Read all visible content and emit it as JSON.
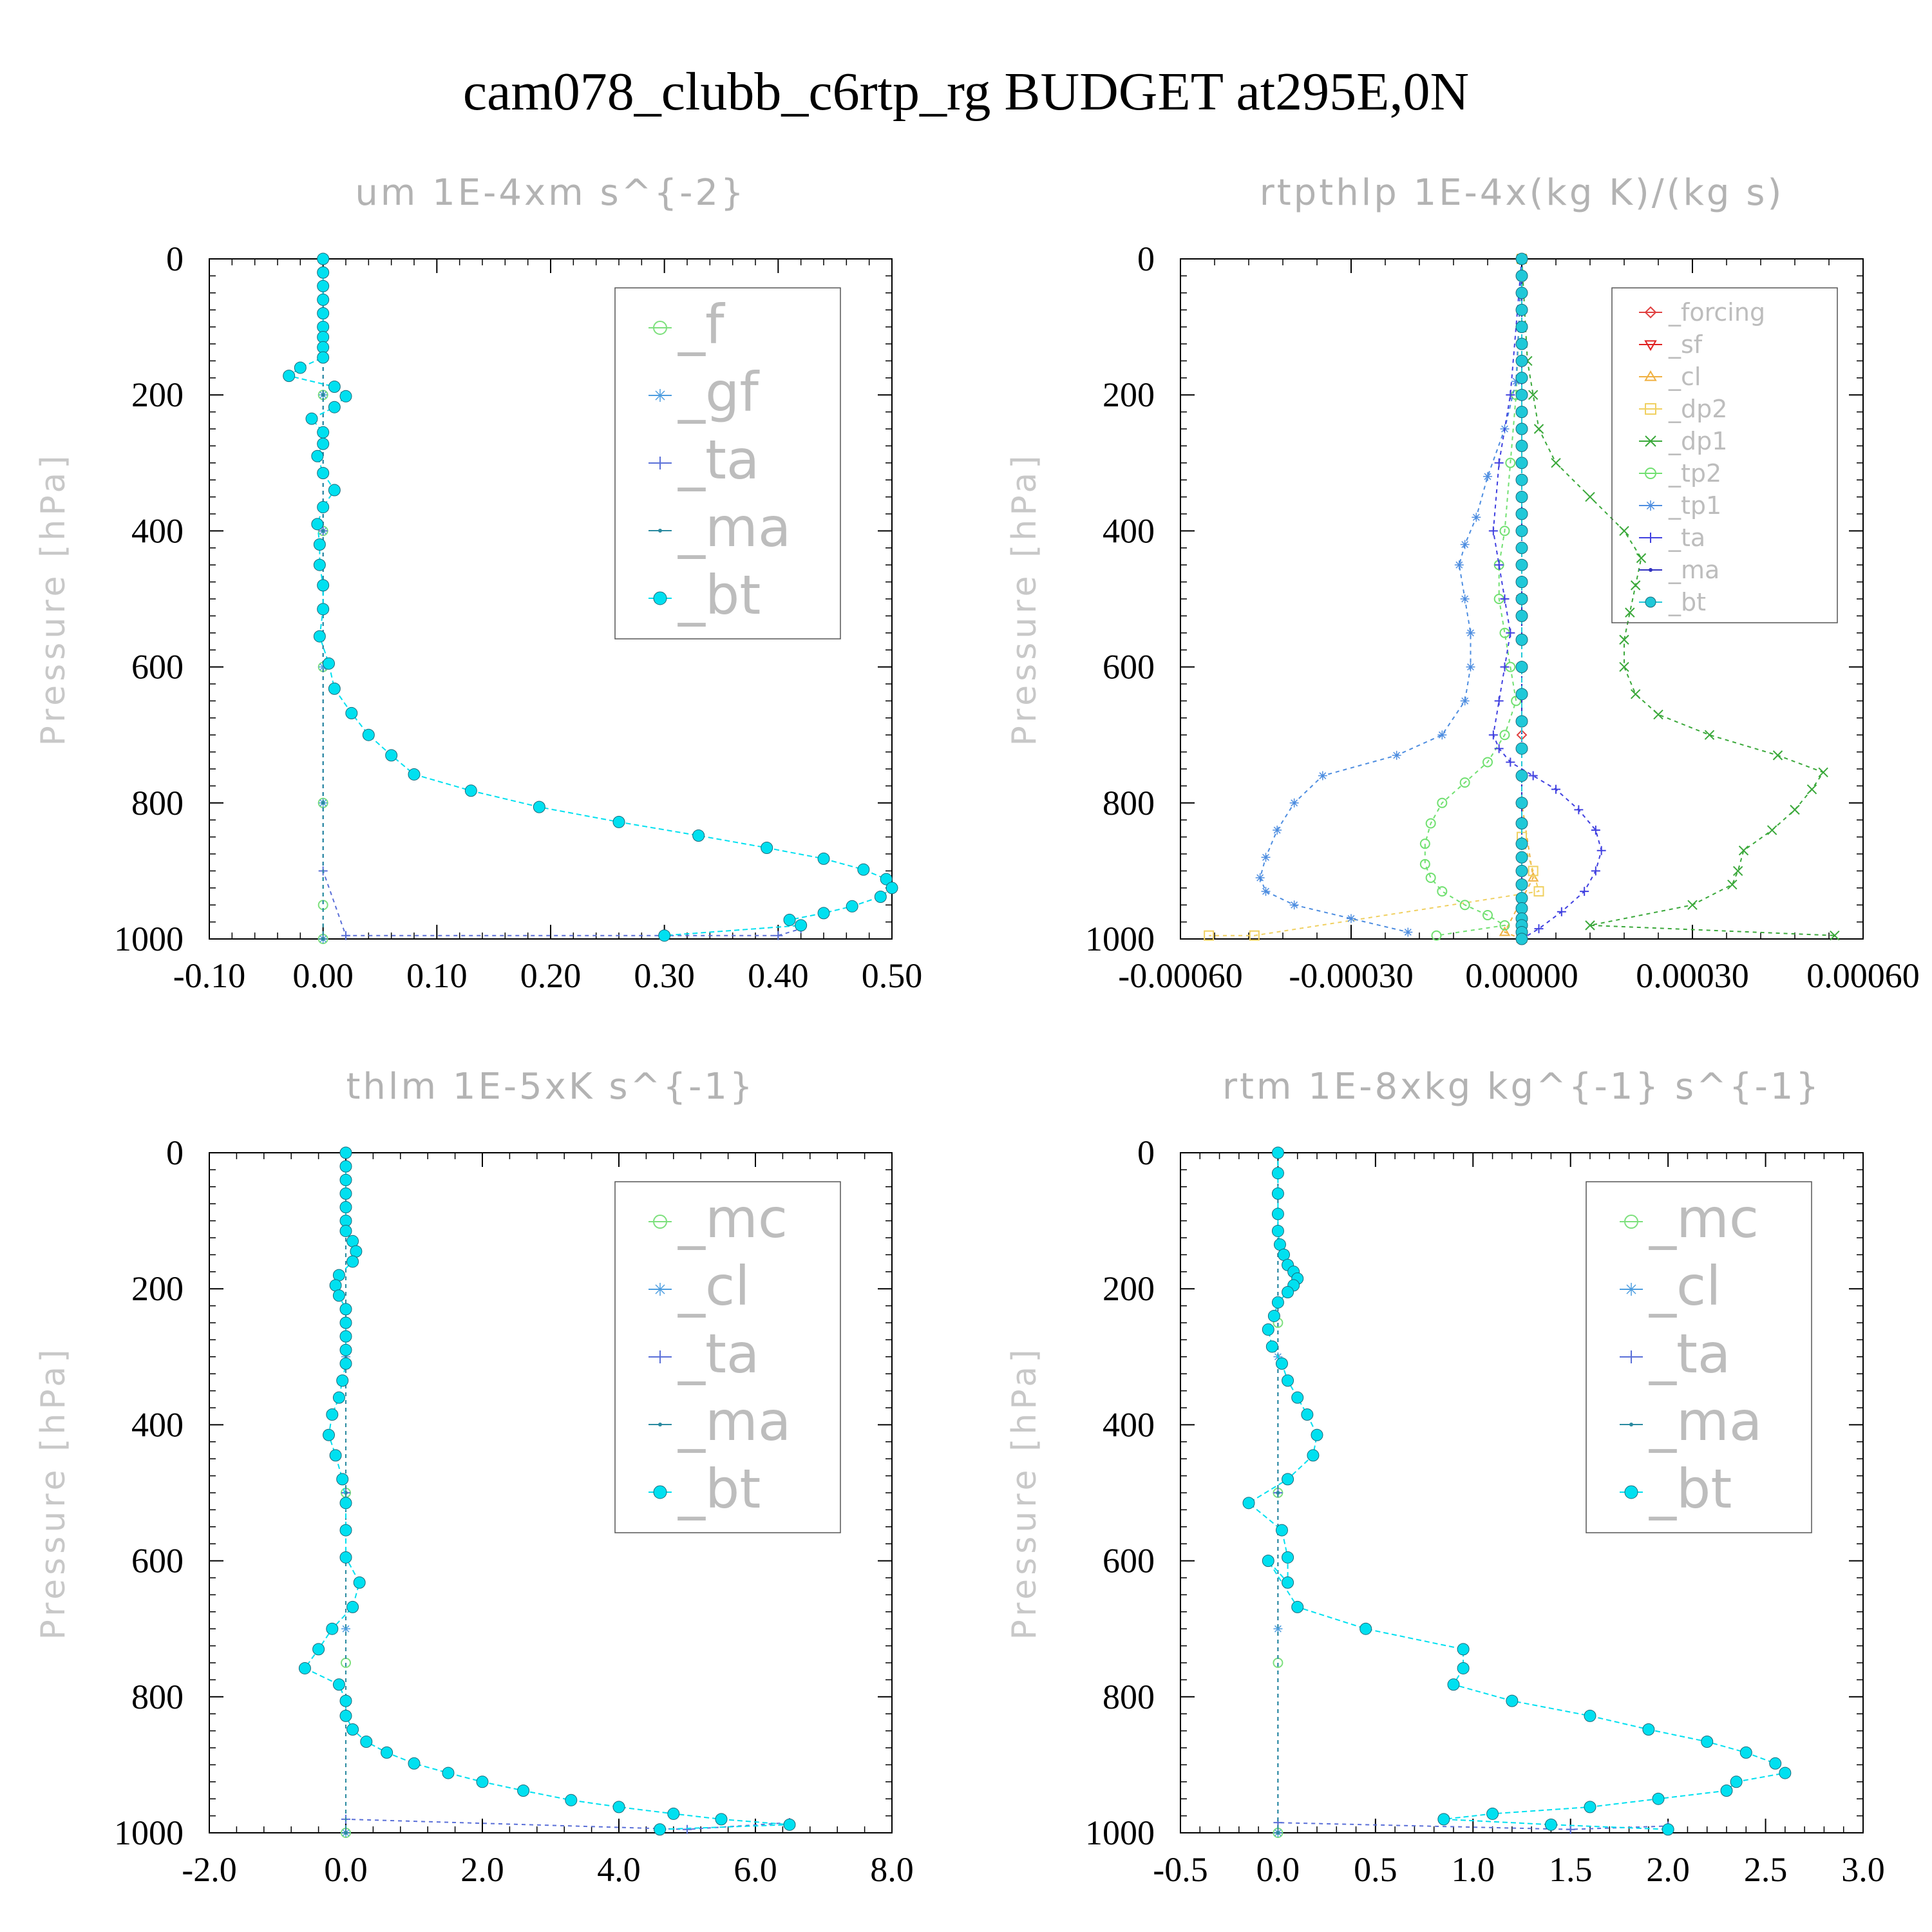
{
  "suptitle": "cam078_clubb_c6rtp_rg  BUDGET at295E,0N",
  "chart_data": [
    {
      "type": "line",
      "title": "um  1E-4xm s^{-2}",
      "ylabel": "Pressure [hPa]",
      "xlim": [
        -0.1,
        0.5
      ],
      "ylim": [
        1000,
        0
      ],
      "xticks": [
        "-0.10",
        "0.00",
        "0.10",
        "0.20",
        "0.30",
        "0.40",
        "0.50"
      ],
      "xtick_values": [
        -0.1,
        0.0,
        0.1,
        0.2,
        0.3,
        0.4,
        0.5
      ],
      "yticks": [
        "0",
        "200",
        "400",
        "600",
        "800",
        "1000"
      ],
      "ytick_values": [
        0,
        200,
        400,
        600,
        800,
        1000
      ],
      "legend_placement": "upper-right",
      "legend_size": "large",
      "series": [
        {
          "name": "_f",
          "color": "#7de07d",
          "marker": "circle-open",
          "x": [
            0,
            0,
            0,
            0,
            0,
            0,
            0
          ],
          "y": [
            0,
            200,
            400,
            600,
            800,
            950,
            1000
          ]
        },
        {
          "name": "_gf",
          "color": "#4d9de0",
          "marker": "star",
          "x": [
            0,
            0,
            0,
            0,
            0,
            0
          ],
          "y": [
            0,
            200,
            400,
            600,
            800,
            1000
          ]
        },
        {
          "name": "_ta",
          "color": "#5a6fd8",
          "marker": "plus",
          "x": [
            0,
            0,
            0,
            0.02,
            0.4,
            0.42
          ],
          "y": [
            0,
            400,
            900,
            995,
            995,
            985
          ]
        },
        {
          "name": "_ma",
          "color": "#2a8aa0",
          "marker": "dot",
          "x": [
            0,
            0,
            0,
            0,
            0
          ],
          "y": [
            0,
            200,
            400,
            800,
            1000
          ]
        },
        {
          "name": "_bt",
          "color": "#00e0f0",
          "marker": "filled-circle",
          "x": [
            0,
            0,
            0,
            0,
            0,
            0,
            0,
            0,
            0,
            -0.02,
            -0.03,
            0.01,
            0.02,
            0.01,
            -0.01,
            0,
            0,
            -0.005,
            0,
            0.01,
            0,
            -0.005,
            -0.003,
            -0.003,
            0,
            0,
            -0.003,
            0.005,
            0.01,
            0.025,
            0.04,
            0.06,
            0.08,
            0.13,
            0.19,
            0.26,
            0.33,
            0.39,
            0.44,
            0.475,
            0.495,
            0.5,
            0.49,
            0.465,
            0.44,
            0.41,
            0.42,
            0.3
          ],
          "y": [
            0,
            20,
            40,
            60,
            80,
            100,
            115,
            130,
            145,
            160,
            172,
            188,
            202,
            218,
            235,
            255,
            272,
            290,
            315,
            340,
            365,
            390,
            420,
            450,
            480,
            515,
            555,
            595,
            632,
            668,
            700,
            730,
            758,
            782,
            806,
            828,
            848,
            866,
            882,
            898,
            912,
            925,
            938,
            952,
            962,
            972,
            980,
            995
          ]
        }
      ]
    },
    {
      "type": "line",
      "title": "rtpthlp  1E-4x(kg K)/(kg s)",
      "ylabel": "Pressure [hPa]",
      "xlim": [
        -0.0006,
        0.0006
      ],
      "ylim": [
        1000,
        0
      ],
      "xticks": [
        "-0.00060",
        "-0.00030",
        "0.00000",
        "0.00030",
        "0.00060"
      ],
      "xtick_values": [
        -0.0006,
        -0.0003,
        0.0,
        0.0003,
        0.0006
      ],
      "yticks": [
        "0",
        "200",
        "400",
        "600",
        "800",
        "1000"
      ],
      "ytick_values": [
        0,
        200,
        400,
        600,
        800,
        1000
      ],
      "legend_placement": "upper-right",
      "legend_size": "small",
      "series": [
        {
          "name": "_forcing",
          "color": "#e04040",
          "marker": "diamond-open",
          "x": [
            0,
            0,
            0,
            0
          ],
          "y": [
            0,
            300,
            700,
            1000
          ]
        },
        {
          "name": "_sf",
          "color": "#e02020",
          "marker": "triangle-down",
          "x": [
            0,
            0,
            0
          ],
          "y": [
            0,
            500,
            1000
          ]
        },
        {
          "name": "_cl",
          "color": "#f0b040",
          "marker": "triangle-up",
          "x": [
            0,
            0,
            2e-05,
            -3e-05,
            0
          ],
          "y": [
            0,
            800,
            910,
            990,
            1000
          ]
        },
        {
          "name": "_dp2",
          "color": "#f0d060",
          "marker": "square-open",
          "x": [
            0,
            0,
            2e-05,
            3e-05,
            -0.00047,
            -0.00055
          ],
          "y": [
            0,
            850,
            900,
            930,
            995,
            995
          ]
        },
        {
          "name": "_dp1",
          "color": "#3aa83a",
          "marker": "x",
          "x": [
            0,
            1e-05,
            2e-05,
            3e-05,
            6e-05,
            0.00012,
            0.00018,
            0.00021,
            0.0002,
            0.00019,
            0.00018,
            0.00018,
            0.0002,
            0.00024,
            0.00033,
            0.00045,
            0.00053,
            0.00051,
            0.00048,
            0.00044,
            0.00039,
            0.00038,
            0.00037,
            0.0003,
            0.00012,
            0.00055
          ],
          "y": [
            0,
            150,
            200,
            250,
            300,
            350,
            400,
            440,
            480,
            520,
            560,
            600,
            640,
            670,
            700,
            730,
            755,
            780,
            810,
            840,
            870,
            900,
            920,
            950,
            980,
            995
          ]
        },
        {
          "name": "_tp2",
          "color": "#70e070",
          "marker": "circle-open",
          "x": [
            0,
            -1e-05,
            -2e-05,
            -3e-05,
            -4e-05,
            -4e-05,
            -3e-05,
            -2e-05,
            -1e-05,
            -3e-05,
            -6e-05,
            -0.0001,
            -0.00014,
            -0.00016,
            -0.00017,
            -0.00017,
            -0.00016,
            -0.00014,
            -0.0001,
            -6e-05,
            -3e-05,
            -0.00015
          ],
          "y": [
            0,
            200,
            300,
            400,
            450,
            500,
            550,
            600,
            650,
            700,
            740,
            770,
            800,
            830,
            860,
            890,
            910,
            930,
            950,
            965,
            980,
            995
          ]
        },
        {
          "name": "_tp1",
          "color": "#4d8de0",
          "marker": "star",
          "x": [
            0,
            -1e-05,
            -3e-05,
            -6e-05,
            -8e-05,
            -0.0001,
            -0.00011,
            -0.0001,
            -9e-05,
            -9e-05,
            -0.0001,
            -0.00014,
            -0.00022,
            -0.00035,
            -0.0004,
            -0.00043,
            -0.00045,
            -0.00046,
            -0.00045,
            -0.0004,
            -0.0003,
            -0.0002
          ],
          "y": [
            0,
            180,
            250,
            320,
            380,
            420,
            450,
            500,
            550,
            600,
            650,
            700,
            730,
            760,
            800,
            840,
            880,
            910,
            930,
            950,
            970,
            990
          ]
        },
        {
          "name": "_ta",
          "color": "#4040e0",
          "marker": "plus",
          "x": [
            0,
            -2e-05,
            -4e-05,
            -5e-05,
            -4e-05,
            -3e-05,
            -2e-05,
            -3e-05,
            -4e-05,
            -5e-05,
            -4e-05,
            -2e-05,
            2e-05,
            6e-05,
            0.0001,
            0.00013,
            0.00014,
            0.00013,
            0.00011,
            7e-05,
            3e-05,
            0
          ],
          "y": [
            0,
            200,
            300,
            400,
            450,
            500,
            550,
            600,
            650,
            700,
            720,
            740,
            760,
            780,
            810,
            840,
            870,
            900,
            930,
            960,
            985,
            1000
          ]
        },
        {
          "name": "_ma",
          "color": "#3030c0",
          "marker": "dot",
          "x": [
            0,
            0,
            0
          ],
          "y": [
            0,
            500,
            1000
          ]
        },
        {
          "name": "_bt",
          "color": "#20c8d8",
          "marker": "filled-circle",
          "x": [
            0,
            0,
            0,
            0,
            0,
            0,
            0,
            0,
            0,
            0,
            0,
            0,
            0,
            0,
            0,
            0,
            0,
            0,
            0,
            0,
            0,
            0,
            0,
            0,
            0,
            0,
            0,
            0,
            0,
            0,
            0,
            0,
            0,
            0,
            0,
            0,
            0,
            0,
            0,
            0
          ],
          "y": [
            0,
            25,
            50,
            75,
            100,
            125,
            150,
            175,
            200,
            225,
            250,
            275,
            300,
            325,
            350,
            375,
            400,
            425,
            450,
            475,
            500,
            525,
            560,
            600,
            640,
            680,
            720,
            760,
            800,
            830,
            860,
            880,
            900,
            920,
            940,
            955,
            970,
            980,
            990,
            1000
          ]
        }
      ]
    },
    {
      "type": "line",
      "title": "thlm  1E-5xK s^{-1}",
      "ylabel": "Pressure [hPa]",
      "xlim": [
        -2.0,
        8.0
      ],
      "ylim": [
        1000,
        0
      ],
      "xticks": [
        "-2.0",
        "0.0",
        "2.0",
        "4.0",
        "6.0",
        "8.0"
      ],
      "xtick_values": [
        -2.0,
        0.0,
        2.0,
        4.0,
        6.0,
        8.0
      ],
      "yticks": [
        "0",
        "200",
        "400",
        "600",
        "800",
        "1000"
      ],
      "ytick_values": [
        0,
        200,
        400,
        600,
        800,
        1000
      ],
      "legend_placement": "upper-right",
      "legend_size": "large",
      "series": [
        {
          "name": "_mc",
          "color": "#7de07d",
          "marker": "circle-open",
          "x": [
            0,
            0,
            0,
            0,
            0
          ],
          "y": [
            0,
            250,
            500,
            750,
            1000
          ]
        },
        {
          "name": "_cl",
          "color": "#4d9de0",
          "marker": "star",
          "x": [
            0,
            0,
            0,
            0
          ],
          "y": [
            0,
            300,
            700,
            1000
          ]
        },
        {
          "name": "_ta",
          "color": "#5a6fd8",
          "marker": "plus",
          "x": [
            0,
            0,
            0,
            5.0,
            6.5
          ],
          "y": [
            0,
            500,
            980,
            995,
            985
          ]
        },
        {
          "name": "_ma",
          "color": "#2a8aa0",
          "marker": "dot",
          "x": [
            0,
            0,
            0
          ],
          "y": [
            0,
            500,
            1000
          ]
        },
        {
          "name": "_bt",
          "color": "#00e0f0",
          "marker": "filled-circle",
          "x": [
            0,
            0,
            0,
            0,
            0,
            0,
            0,
            0.1,
            0.15,
            0.1,
            -0.1,
            -0.15,
            -0.1,
            0,
            0,
            0,
            0,
            0,
            -0.05,
            -0.1,
            -0.2,
            -0.25,
            -0.15,
            -0.05,
            0,
            0,
            0,
            0.2,
            0.1,
            -0.2,
            -0.4,
            -0.6,
            -0.1,
            0,
            0,
            0.1,
            0.3,
            0.6,
            1.0,
            1.5,
            2.0,
            2.6,
            3.3,
            4.0,
            4.8,
            5.5,
            6.5,
            4.6
          ],
          "y": [
            0,
            20,
            40,
            60,
            80,
            100,
            115,
            130,
            145,
            160,
            180,
            195,
            210,
            230,
            250,
            270,
            290,
            310,
            335,
            360,
            385,
            415,
            445,
            480,
            515,
            555,
            595,
            632,
            668,
            700,
            730,
            758,
            782,
            806,
            828,
            848,
            866,
            882,
            898,
            912,
            925,
            938,
            952,
            962,
            972,
            980,
            988,
            995
          ]
        }
      ]
    },
    {
      "type": "line",
      "title": "rtm  1E-8xkg kg^{-1} s^{-1}",
      "ylabel": "Pressure [hPa]",
      "xlim": [
        -0.5,
        3.0
      ],
      "ylim": [
        1000,
        0
      ],
      "xticks": [
        "-0.5",
        "0.0",
        "0.5",
        "1.0",
        "1.5",
        "2.0",
        "2.5",
        "3.0"
      ],
      "xtick_values": [
        -0.5,
        0.0,
        0.5,
        1.0,
        1.5,
        2.0,
        2.5,
        3.0
      ],
      "yticks": [
        "0",
        "200",
        "400",
        "600",
        "800",
        "1000"
      ],
      "ytick_values": [
        0,
        200,
        400,
        600,
        800,
        1000
      ],
      "legend_placement": "upper-right",
      "legend_size": "large",
      "series": [
        {
          "name": "_mc",
          "color": "#7de07d",
          "marker": "circle-open",
          "x": [
            0,
            0,
            0,
            0,
            0
          ],
          "y": [
            0,
            250,
            500,
            750,
            1000
          ]
        },
        {
          "name": "_cl",
          "color": "#4d9de0",
          "marker": "star",
          "x": [
            0,
            0,
            0,
            0
          ],
          "y": [
            0,
            300,
            700,
            1000
          ]
        },
        {
          "name": "_ta",
          "color": "#5a6fd8",
          "marker": "plus",
          "x": [
            0,
            0,
            0,
            1.5,
            2.0
          ],
          "y": [
            0,
            500,
            985,
            995,
            990
          ]
        },
        {
          "name": "_ma",
          "color": "#2a8aa0",
          "marker": "dot",
          "x": [
            0,
            0,
            0
          ],
          "y": [
            0,
            500,
            1000
          ]
        },
        {
          "name": "_bt",
          "color": "#00e0f0",
          "marker": "filled-circle",
          "x": [
            0,
            0,
            0,
            0,
            0,
            0.01,
            0.03,
            0.05,
            0.08,
            0.1,
            0.08,
            0.05,
            0,
            -0.02,
            -0.05,
            -0.03,
            0.02,
            0.05,
            0.1,
            0.15,
            0.2,
            0.18,
            0.05,
            -0.15,
            0.02,
            0.05,
            0.05,
            -0.05,
            0.1,
            0.45,
            0.95,
            0.95,
            0.9,
            1.2,
            1.6,
            1.9,
            2.2,
            2.4,
            2.55,
            2.6,
            2.35,
            2.3,
            1.95,
            1.6,
            1.1,
            0.85,
            1.4,
            2.0
          ],
          "y": [
            0,
            30,
            60,
            90,
            115,
            135,
            150,
            165,
            175,
            185,
            195,
            205,
            220,
            240,
            260,
            285,
            310,
            335,
            360,
            385,
            415,
            445,
            480,
            515,
            555,
            595,
            632,
            600,
            668,
            700,
            730,
            758,
            782,
            806,
            828,
            848,
            866,
            882,
            898,
            912,
            925,
            938,
            950,
            962,
            972,
            980,
            988,
            995
          ]
        }
      ]
    }
  ]
}
